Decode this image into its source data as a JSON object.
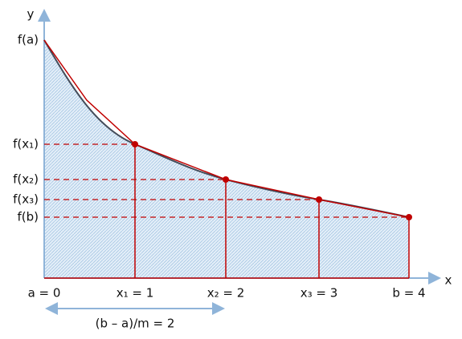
{
  "axes": {
    "y_label": "y",
    "x_label": "x"
  },
  "y_labels": [
    "f(a)",
    "f(x₁)",
    "f(x₂)",
    "f(x₃)",
    "f(b)"
  ],
  "x_labels": [
    "a = 0",
    "x₁ = 1",
    "x₂ = 2",
    "x₃ = 3",
    "b = 4"
  ],
  "step_label": "(b – a)/m = 2"
}
